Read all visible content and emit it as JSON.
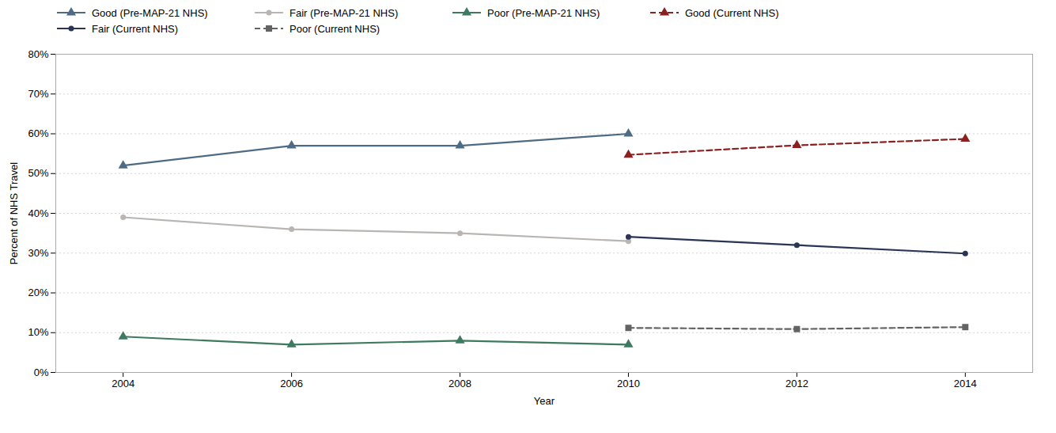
{
  "chart_data": {
    "type": "line",
    "xlabel": "Year",
    "ylabel": "Percent of NHS Travel",
    "xlim": [
      2003.2,
      2014.8
    ],
    "xticks": [
      2004,
      2006,
      2008,
      2010,
      2012,
      2014
    ],
    "ylim": [
      0,
      80
    ],
    "yticks": [
      {
        "value": 0,
        "label": "0%"
      },
      {
        "value": 10,
        "label": "10%"
      },
      {
        "value": 20,
        "label": "20%"
      },
      {
        "value": 30,
        "label": "30%"
      },
      {
        "value": 40,
        "label": "40%"
      },
      {
        "value": 50,
        "label": "50%"
      },
      {
        "value": 60,
        "label": "60%"
      },
      {
        "value": 70,
        "label": "70%"
      },
      {
        "value": 80,
        "label": "80%"
      }
    ],
    "grid": true,
    "legend": "upper left",
    "series": [
      {
        "name": "Good (Pre-MAP-21 NHS)",
        "color": "#4d6b84",
        "marker": "triangle",
        "line_style": "solid",
        "x": [
          2004,
          2006,
          2008,
          2010
        ],
        "values": [
          52,
          57,
          57,
          60
        ]
      },
      {
        "name": "Fair (Pre-MAP-21 NHS)",
        "color": "#b8b5b2",
        "marker": "circle",
        "line_style": "solid",
        "x": [
          2004,
          2006,
          2008,
          2010
        ],
        "values": [
          39,
          36,
          35,
          33
        ]
      },
      {
        "name": "Poor (Pre-MAP-21 NHS)",
        "color": "#3d7a5f",
        "marker": "triangle",
        "line_style": "solid",
        "x": [
          2004,
          2006,
          2008,
          2010
        ],
        "values": [
          9,
          7,
          8,
          7
        ]
      },
      {
        "name": "Good (Current NHS)",
        "color": "#8b2020",
        "marker": "triangle",
        "line_style": "dashed",
        "x": [
          2010,
          2012,
          2014
        ],
        "values": [
          54.7,
          57.1,
          58.7
        ]
      },
      {
        "name": "Fair (Current NHS)",
        "color": "#2a3555",
        "marker": "circle",
        "line_style": "solid",
        "x": [
          2010,
          2012,
          2014
        ],
        "values": [
          34.1,
          32.0,
          29.9
        ]
      },
      {
        "name": "Poor (Current NHS)",
        "color": "#636363",
        "marker": "square",
        "line_style": "dashed",
        "x": [
          2010,
          2012,
          2014
        ],
        "values": [
          11.2,
          10.9,
          11.4
        ]
      }
    ]
  }
}
